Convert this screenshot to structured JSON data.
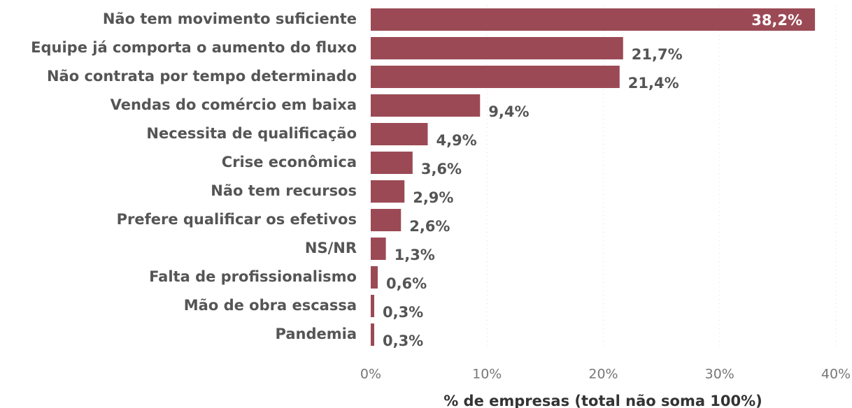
{
  "chart_data": {
    "type": "barh",
    "categories": [
      "Não tem movimento suficiente",
      "Equipe já comporta o aumento do fluxo",
      "Não contrata por tempo determinado",
      "Vendas do comércio em baixa",
      "Necessita de qualificação",
      "Crise econômica",
      "Não tem recursos",
      "Prefere qualificar os efetivos",
      "NS/NR",
      "Falta de profissionalismo",
      "Mão de obra escassa",
      "Pandemia"
    ],
    "values": [
      38.2,
      21.7,
      21.4,
      9.4,
      4.9,
      3.6,
      2.9,
      2.6,
      1.3,
      0.6,
      0.3,
      0.3
    ],
    "value_labels": [
      "38,2%",
      "21,7%",
      "21,4%",
      "9,4%",
      "4,9%",
      "3,6%",
      "2,9%",
      "2,6%",
      "1,3%",
      "0,6%",
      "0,3%",
      "0,3%"
    ],
    "color": "#9b4a55",
    "xlim": [
      0,
      40
    ],
    "xticks": [
      {
        "value": 0,
        "label": "0%"
      },
      {
        "value": 10,
        "label": "10%"
      },
      {
        "value": 20,
        "label": "20%"
      },
      {
        "value": 30,
        "label": "30%"
      },
      {
        "value": 40,
        "label": "40%"
      }
    ],
    "xlabel": "% de empresas (total não soma 100%)",
    "grid": true
  }
}
